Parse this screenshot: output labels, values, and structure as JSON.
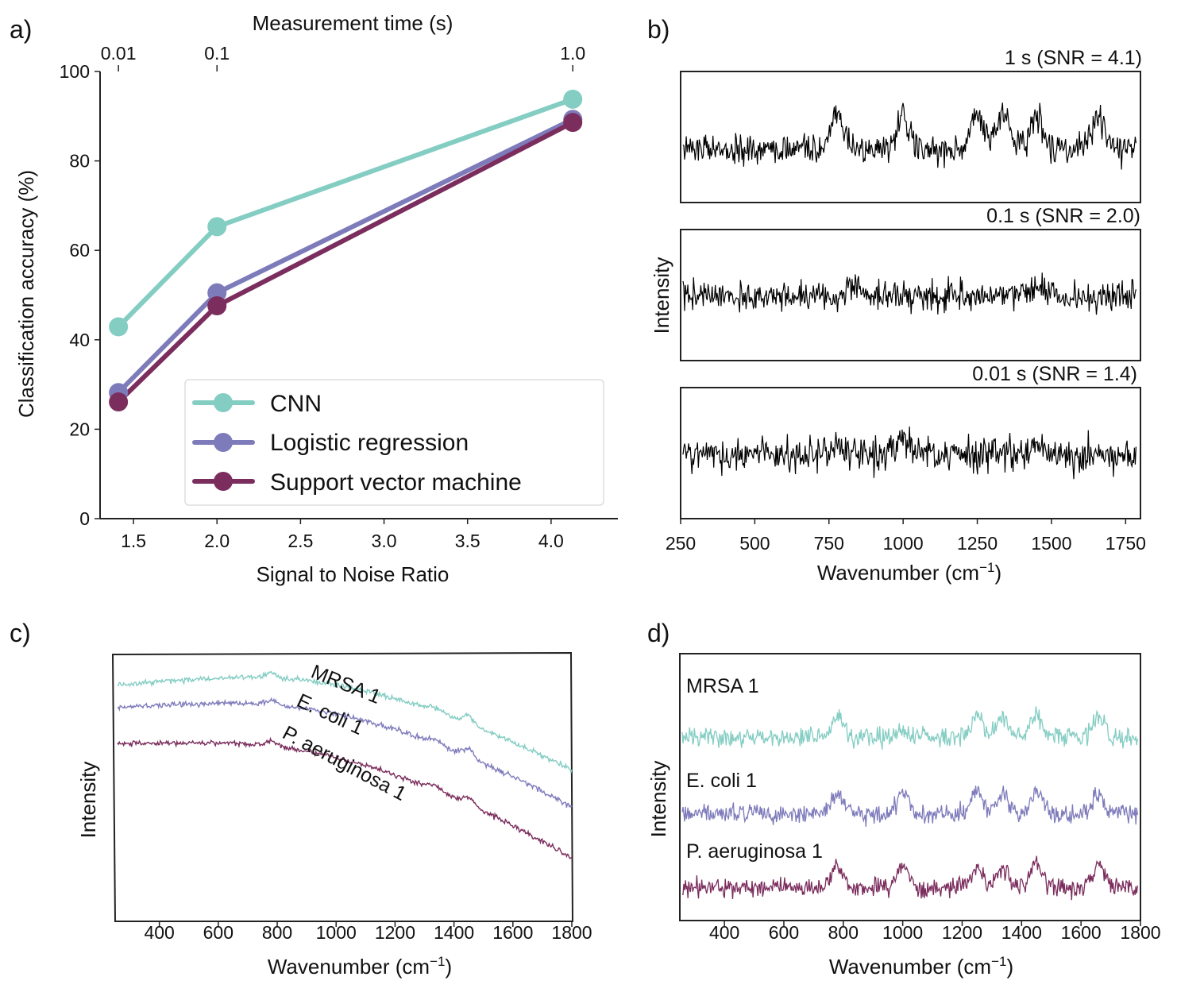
{
  "panels": {
    "a": "a)",
    "b": "b)",
    "c": "c)",
    "d": "d)"
  },
  "colors": {
    "cnn": "#84cdc3",
    "logistic": "#7e7bbb",
    "svm": "#7b2d5d",
    "trace": "#000000"
  },
  "chart_data": [
    {
      "panel": "a",
      "type": "line",
      "title": "",
      "xlabel": "Signal to Noise Ratio",
      "ylabel": "Classification accuracy (%)",
      "top_xlabel": "Measurement time (s)",
      "x": [
        1.41,
        2.0,
        4.13
      ],
      "top_ticks": [
        "0.01",
        "0.1",
        "1.0"
      ],
      "xticks": [
        "1.5",
        "2.0",
        "2.5",
        "3.0",
        "3.5",
        "4.0"
      ],
      "yticks": [
        "0",
        "20",
        "40",
        "60",
        "80",
        "100"
      ],
      "xlim": [
        1.3,
        4.4
      ],
      "ylim": [
        0,
        100
      ],
      "legend_position": "lower-right",
      "series": [
        {
          "name": "CNN",
          "values": [
            42.9,
            65.3,
            93.8
          ]
        },
        {
          "name": "Logistic regression",
          "values": [
            28.2,
            50.5,
            89.3
          ]
        },
        {
          "name": "Support vector machine",
          "values": [
            26.1,
            47.6,
            88.6
          ]
        }
      ]
    },
    {
      "panel": "b",
      "type": "line",
      "xlabel": "Wavenumber (cm",
      "xlabel_sup": "−1",
      "xlabel_close": ")",
      "ylabel": "Intensity",
      "xticks": [
        "250",
        "500",
        "750",
        "1000",
        "1250",
        "1500",
        "1750"
      ],
      "xlim": [
        250,
        1800
      ],
      "subplots": [
        {
          "label": "1 s (SNR = 4.1)",
          "peaks": [
            780,
            1000,
            1250,
            1335,
            1450,
            1660
          ]
        },
        {
          "label": "0.1 s (SNR = 2.0)",
          "peaks": [
            830,
            1450
          ]
        },
        {
          "label": "0.01 s (SNR = 1.4)",
          "peaks": [
            1000,
            1450
          ]
        }
      ]
    },
    {
      "panel": "c",
      "type": "line",
      "xlabel": "Wavenumber (cm",
      "xlabel_sup": "−1",
      "xlabel_close": ")",
      "ylabel": "Intensity",
      "xticks": [
        "400",
        "600",
        "800",
        "1000",
        "1200",
        "1400",
        "1600",
        "1800"
      ],
      "xlim": [
        250,
        1800
      ],
      "series": [
        {
          "name": "MRSA 1"
        },
        {
          "name": "E. coli 1"
        },
        {
          "name": "P. aeruginosa 1"
        }
      ]
    },
    {
      "panel": "d",
      "type": "line",
      "xlabel": "Wavenumber (cm",
      "xlabel_sup": "−1",
      "xlabel_close": ")",
      "ylabel": "Intensity",
      "xticks": [
        "400",
        "600",
        "800",
        "1000",
        "1200",
        "1400",
        "1600",
        "1800"
      ],
      "xlim": [
        250,
        1800
      ],
      "series": [
        {
          "name": "MRSA 1"
        },
        {
          "name": "E. coli 1"
        },
        {
          "name": "P. aeruginosa 1"
        }
      ]
    }
  ]
}
